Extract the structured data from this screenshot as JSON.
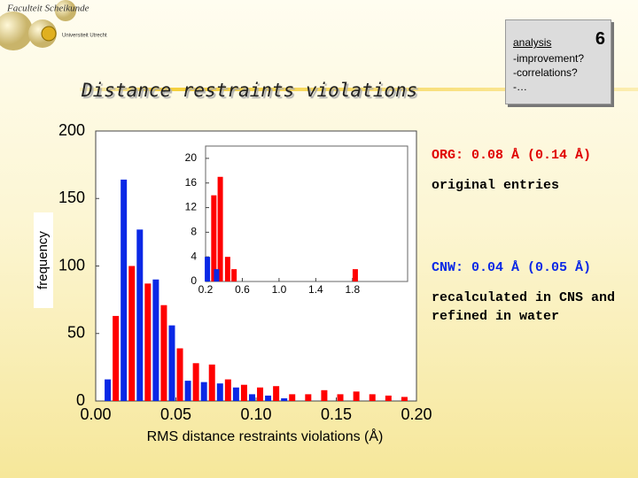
{
  "logo": {
    "line1": "Faculteit Scheikunde",
    "line2": "Universiteit Utrecht"
  },
  "title": "Distance restraints violations",
  "box": {
    "heading": "analysis",
    "number": 6,
    "items": [
      "-improvement?",
      "-correlations?",
      "-…"
    ]
  },
  "notes": [
    "ORG: 0.08 Å (0.14 Å)",
    "original entries",
    "CNW: 0.04 Å (0.05 Å)",
    "recalculated in CNS and refined in water"
  ],
  "chart_data": [
    {
      "type": "histogram",
      "x_label": "RMS distance restraints violations (Å)",
      "y_label": "frequency",
      "bins": [
        0,
        0.01,
        0.02,
        0.03,
        0.04,
        0.05,
        0.06,
        0.07,
        0.08,
        0.09,
        0.1,
        0.11,
        0.12,
        0.13,
        0.14,
        0.15,
        0.16,
        0.17,
        0.18,
        0.19,
        0.2
      ],
      "series": [
        {
          "color": "#ff0000",
          "values": [
            0,
            63,
            100,
            87,
            71,
            39,
            28,
            27,
            16,
            12,
            10,
            11,
            5,
            5,
            8,
            5,
            7,
            5,
            4,
            3
          ]
        },
        {
          "color": "#0a28e6",
          "values": [
            16,
            164,
            127,
            90,
            56,
            15,
            14,
            13,
            10,
            5,
            4,
            2,
            0,
            0,
            0,
            0,
            0,
            0,
            0,
            0
          ]
        }
      ],
      "xlim": [
        0,
        0.2
      ],
      "xticks": [
        {
          "value": 0,
          "label": "0.00"
        },
        0.05,
        {
          "value": 0.1,
          "label": "0.10"
        },
        0.15,
        {
          "value": 0.2,
          "label": "0.20"
        }
      ],
      "ylim": [
        0,
        200
      ],
      "yticks": [
        0,
        50,
        100,
        150,
        200
      ],
      "grid": false
    },
    {
      "type": "bar",
      "series": [
        {
          "color": "#ff0000",
          "x": [
            0.29,
            0.36,
            0.44,
            0.51,
            1.83
          ],
          "values": [
            14,
            17,
            4,
            2,
            2
          ]
        },
        {
          "color": "#0a28e6",
          "x": [
            0.22,
            0.32
          ],
          "values": [
            4,
            2
          ]
        }
      ],
      "xlim": [
        0.2,
        2.4
      ],
      "xticks": [
        0.2,
        0.6,
        {
          "value": 1,
          "label": "1.0"
        },
        1.4,
        1.8
      ],
      "ylim": [
        0,
        22
      ],
      "yticks": [
        0,
        4,
        8,
        12,
        16,
        20
      ],
      "grid": false
    }
  ]
}
